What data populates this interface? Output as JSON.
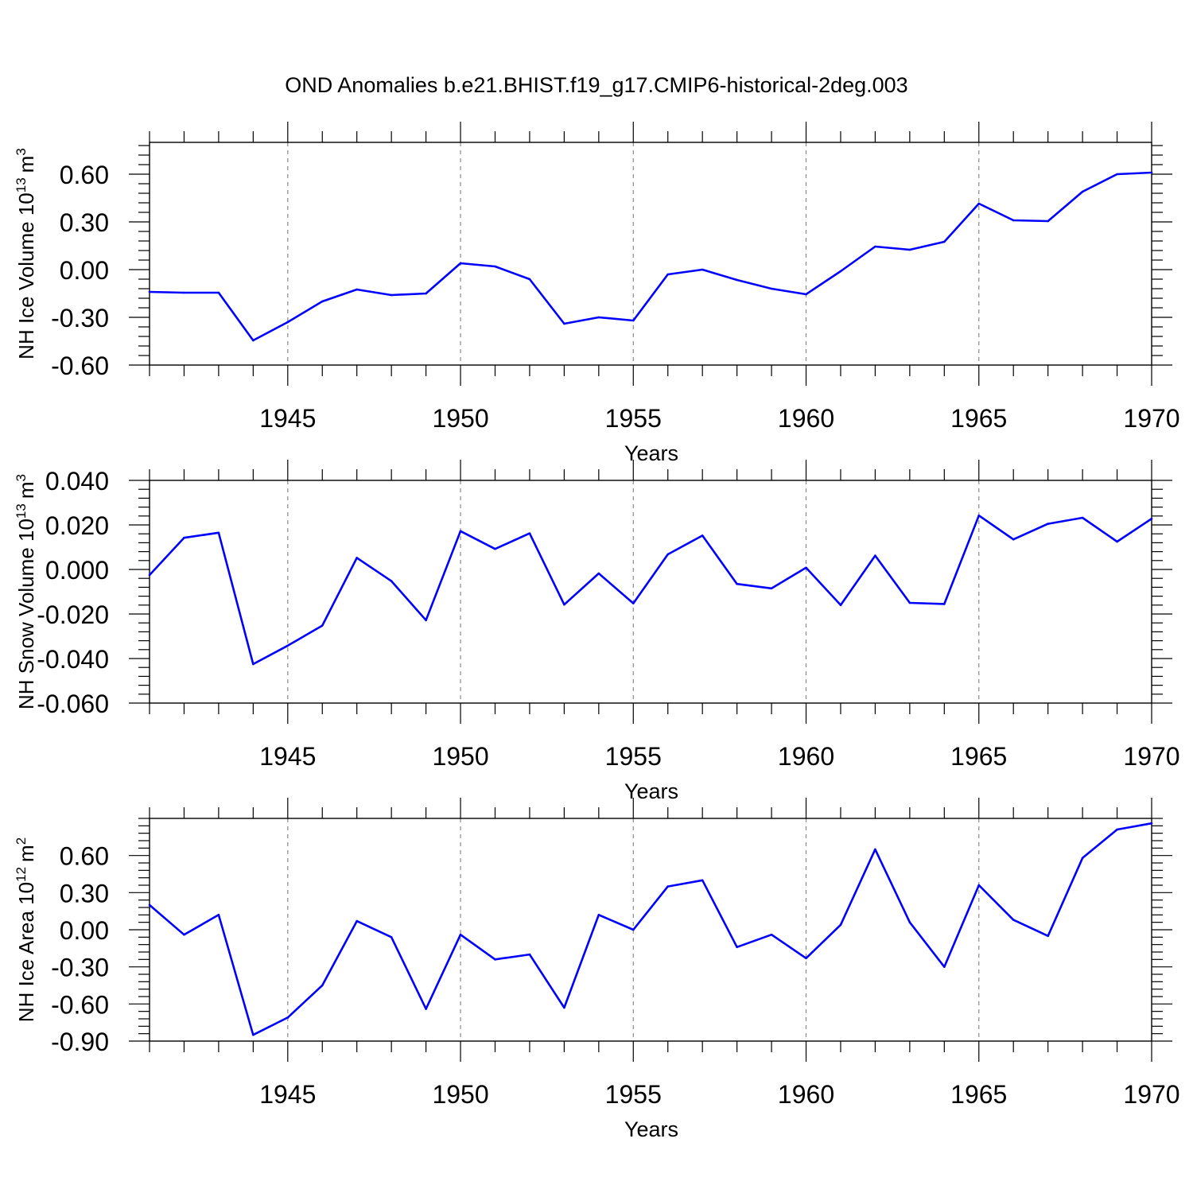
{
  "title": "OND Anomalies b.e21.BHIST.f19_g17.CMIP6-historical-2deg.003",
  "line_color": "#0000ff",
  "chart_data": [
    {
      "type": "line",
      "ylabel_main": "NH Ice Volume 10",
      "ylabel_exp": "13",
      "ylabel_unit": "m",
      "ylabel_unit_exp": "3",
      "xlabel": "Years",
      "xlim": [
        1941,
        1970
      ],
      "ylim": [
        -0.6,
        0.8
      ],
      "y_ticks": [
        -0.6,
        -0.3,
        0.0,
        0.3,
        0.6
      ],
      "y_tick_labels": [
        "-0.60",
        "-0.30",
        "0.00",
        "0.30",
        "0.60"
      ],
      "x_ticks": [
        1945,
        1950,
        1955,
        1960,
        1965,
        1970
      ],
      "x_tick_labels": [
        "1945",
        "1950",
        "1955",
        "1960",
        "1965",
        "1970"
      ],
      "x": [
        1941,
        1942,
        1943,
        1944,
        1945,
        1946,
        1947,
        1948,
        1949,
        1950,
        1951,
        1952,
        1953,
        1954,
        1955,
        1956,
        1957,
        1958,
        1959,
        1960,
        1961,
        1962,
        1963,
        1964,
        1965,
        1966,
        1967,
        1968,
        1969,
        1970
      ],
      "values": [
        -0.14,
        -0.145,
        -0.145,
        -0.445,
        -0.33,
        -0.2,
        -0.125,
        -0.16,
        -0.15,
        0.04,
        0.02,
        -0.06,
        -0.34,
        -0.3,
        -0.32,
        -0.03,
        0.0,
        -0.065,
        -0.12,
        -0.155,
        -0.01,
        0.145,
        0.125,
        0.175,
        0.415,
        0.31,
        0.305,
        0.49,
        0.6,
        0.61
      ]
    },
    {
      "type": "line",
      "ylabel_main": "NH Snow Volume 10",
      "ylabel_exp": "13",
      "ylabel_unit": "m",
      "ylabel_unit_exp": "3",
      "xlabel": "Years",
      "xlim": [
        1941,
        1970
      ],
      "ylim": [
        -0.06,
        0.04
      ],
      "y_ticks": [
        -0.06,
        -0.04,
        -0.02,
        0.0,
        0.02,
        0.04
      ],
      "y_tick_labels": [
        "-0.060",
        "-0.040",
        "-0.020",
        "0.000",
        "0.020",
        "0.040"
      ],
      "x_ticks": [
        1945,
        1950,
        1955,
        1960,
        1965,
        1970
      ],
      "x_tick_labels": [
        "1945",
        "1950",
        "1955",
        "1960",
        "1965",
        "1970"
      ],
      "x": [
        1941,
        1942,
        1943,
        1944,
        1945,
        1946,
        1947,
        1948,
        1949,
        1950,
        1951,
        1952,
        1953,
        1954,
        1955,
        1956,
        1957,
        1958,
        1959,
        1960,
        1961,
        1962,
        1963,
        1964,
        1965,
        1966,
        1967,
        1968,
        1969,
        1970
      ],
      "values": [
        -0.0025,
        0.0142,
        0.0165,
        -0.0425,
        -0.0342,
        -0.0252,
        0.0052,
        -0.0052,
        -0.0228,
        0.0172,
        0.0092,
        0.0162,
        -0.0158,
        -0.0018,
        -0.0152,
        0.0068,
        0.0152,
        -0.0065,
        -0.0085,
        0.0008,
        -0.016,
        0.0062,
        -0.015,
        -0.0155,
        0.0242,
        0.0135,
        0.0205,
        0.0232,
        0.0125,
        0.0228
      ]
    },
    {
      "type": "line",
      "ylabel_main": "NH Ice Area 10",
      "ylabel_exp": "12",
      "ylabel_unit": "m",
      "ylabel_unit_exp": "2",
      "xlabel": "Years",
      "xlim": [
        1941,
        1970
      ],
      "ylim": [
        -0.9,
        0.9
      ],
      "y_ticks": [
        -0.9,
        -0.6,
        -0.3,
        0.0,
        0.3,
        0.6
      ],
      "y_tick_labels": [
        "-0.90",
        "-0.60",
        "-0.30",
        "0.00",
        "0.30",
        "0.60"
      ],
      "x_ticks": [
        1945,
        1950,
        1955,
        1960,
        1965,
        1970
      ],
      "x_tick_labels": [
        "1945",
        "1950",
        "1955",
        "1960",
        "1965",
        "1970"
      ],
      "x": [
        1941,
        1942,
        1943,
        1944,
        1945,
        1946,
        1947,
        1948,
        1949,
        1950,
        1951,
        1952,
        1953,
        1954,
        1955,
        1956,
        1957,
        1958,
        1959,
        1960,
        1961,
        1962,
        1963,
        1964,
        1965,
        1966,
        1967,
        1968,
        1969,
        1970
      ],
      "values": [
        0.2,
        -0.04,
        0.12,
        -0.85,
        -0.71,
        -0.45,
        0.07,
        -0.06,
        -0.64,
        -0.04,
        -0.24,
        -0.2,
        -0.63,
        0.12,
        0.0,
        0.35,
        0.4,
        -0.14,
        -0.04,
        -0.23,
        0.04,
        0.65,
        0.06,
        -0.3,
        0.36,
        0.08,
        -0.05,
        0.58,
        0.81,
        0.86
      ]
    }
  ]
}
